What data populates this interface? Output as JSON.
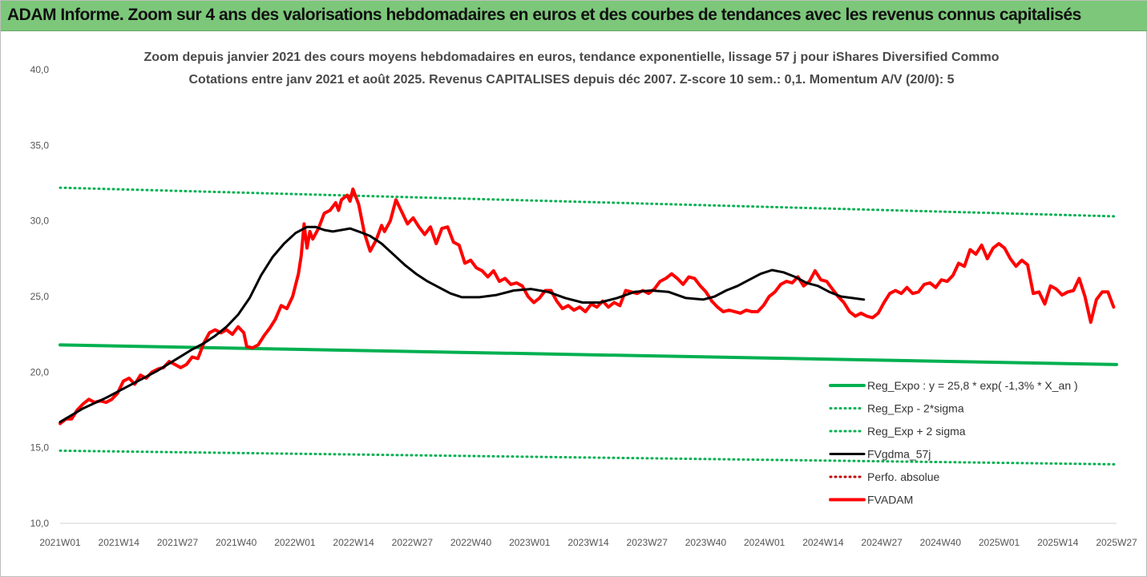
{
  "banner": {
    "title": "ADAM Informe. Zoom sur 4 ans des valorisations hebdomadaires en euros et des courbes de tendances avec les revenus connus capitalisés"
  },
  "colors": {
    "banner_bg": "#7cc77a",
    "green": "#00b050",
    "red": "#ff0000",
    "black": "#000000",
    "dark_red": "#c00000"
  },
  "chart_data": {
    "type": "line",
    "title": "Zoom depuis janvier 2021 des cours moyens hebdomadaires en euros, tendance exponentielle, lissage 57 j pour iShares Diversified Commo",
    "subtitle": "Cotations entre janv 2021 et août 2025. Revenus CAPITALISES depuis déc 2007. Z-score 10 sem.: 0,1. Momentum A/V (20/0): 5",
    "x_tick_labels": [
      "2021W01",
      "2021W14",
      "2021W27",
      "2021W40",
      "2022W01",
      "2022W14",
      "2022W27",
      "2022W40",
      "2023W01",
      "2023W14",
      "2023W27",
      "2023W40",
      "2024W01",
      "2024W14",
      "2024W27",
      "2024W40",
      "2025W01",
      "2025W14",
      "2025W27"
    ],
    "y_tick_labels": [
      "10,0",
      "15,0",
      "20,0",
      "25,0",
      "30,0",
      "35,0",
      "40,0"
    ],
    "ylim": [
      10,
      40
    ],
    "y_ticks": [
      10,
      15,
      20,
      25,
      30,
      35,
      40
    ],
    "x_range_weeks": [
      0,
      236
    ],
    "grid": false,
    "legend_position": "bottom-right",
    "series": [
      {
        "name": "Reg_Expo : y = 25,8 * exp( -1,3% *  X_an )",
        "style": "solid-thick",
        "color": "#00b050",
        "points": [
          [
            0,
            21.8
          ],
          [
            236,
            20.5
          ]
        ]
      },
      {
        "name": "Reg_Exp - 2*sigma",
        "style": "dotted",
        "color": "#00b050",
        "points": [
          [
            0,
            14.8
          ],
          [
            236,
            13.9
          ]
        ]
      },
      {
        "name": "Reg_Exp + 2 sigma",
        "style": "dotted",
        "color": "#00b050",
        "points": [
          [
            0,
            32.2
          ],
          [
            236,
            30.3
          ]
        ]
      },
      {
        "name": "FVgdma_57j",
        "style": "solid",
        "color": "#000000",
        "points": [
          [
            0,
            16.7
          ],
          [
            8,
            17.6
          ],
          [
            16,
            18.3
          ],
          [
            22,
            18.9
          ],
          [
            28,
            19.5
          ],
          [
            34,
            20.1
          ],
          [
            40,
            20.8
          ],
          [
            46,
            21.5
          ],
          [
            50,
            21.9
          ],
          [
            54,
            22.4
          ],
          [
            58,
            23.0
          ],
          [
            62,
            23.8
          ],
          [
            66,
            24.9
          ],
          [
            70,
            26.4
          ],
          [
            74,
            27.6
          ],
          [
            78,
            28.5
          ],
          [
            82,
            29.2
          ],
          [
            86,
            29.6
          ],
          [
            89,
            29.6
          ],
          [
            92,
            29.4
          ],
          [
            95,
            29.3
          ],
          [
            98,
            29.4
          ],
          [
            101,
            29.5
          ],
          [
            104,
            29.3
          ],
          [
            108,
            29.0
          ],
          [
            112,
            28.5
          ],
          [
            116,
            27.8
          ],
          [
            120,
            27.1
          ],
          [
            124,
            26.5
          ],
          [
            128,
            26.0
          ],
          [
            132,
            25.6
          ],
          [
            136,
            25.2
          ],
          [
            140,
            24.95
          ],
          [
            146,
            24.95
          ],
          [
            152,
            25.1
          ],
          [
            158,
            25.4
          ],
          [
            164,
            25.5
          ],
          [
            170,
            25.3
          ],
          [
            176,
            24.9
          ],
          [
            182,
            24.6
          ],
          [
            188,
            24.6
          ],
          [
            194,
            24.9
          ],
          [
            200,
            25.3
          ],
          [
            206,
            25.4
          ],
          [
            212,
            25.3
          ],
          [
            218,
            24.9
          ],
          [
            224,
            24.8
          ],
          [
            228,
            25.0
          ],
          [
            232,
            25.4
          ],
          [
            236,
            25.7
          ],
          [
            240,
            26.1
          ],
          [
            244,
            26.5
          ],
          [
            248,
            26.75
          ],
          [
            252,
            26.6
          ],
          [
            256,
            26.3
          ],
          [
            260,
            25.9
          ],
          [
            264,
            25.7
          ],
          [
            268,
            25.3
          ],
          [
            272,
            25.0
          ],
          [
            276,
            24.9
          ],
          [
            280,
            24.8
          ]
        ]
      },
      {
        "name": "Perfo. absolue",
        "style": "dotted",
        "color": "#c00000",
        "points": []
      },
      {
        "name": "FVADAM",
        "style": "solid-thick",
        "color": "#ff0000",
        "points": [
          [
            0,
            16.6
          ],
          [
            2,
            16.9
          ],
          [
            4,
            16.9
          ],
          [
            6,
            17.5
          ],
          [
            8,
            17.9
          ],
          [
            10,
            18.2
          ],
          [
            12,
            18.0
          ],
          [
            14,
            18.1
          ],
          [
            16,
            18.0
          ],
          [
            18,
            18.2
          ],
          [
            20,
            18.6
          ],
          [
            22,
            19.4
          ],
          [
            24,
            19.6
          ],
          [
            26,
            19.2
          ],
          [
            28,
            19.8
          ],
          [
            30,
            19.6
          ],
          [
            32,
            20.0
          ],
          [
            34,
            20.2
          ],
          [
            36,
            20.3
          ],
          [
            38,
            20.7
          ],
          [
            40,
            20.5
          ],
          [
            42,
            20.3
          ],
          [
            44,
            20.5
          ],
          [
            46,
            21.0
          ],
          [
            48,
            20.9
          ],
          [
            50,
            21.9
          ],
          [
            52,
            22.6
          ],
          [
            54,
            22.8
          ],
          [
            56,
            22.6
          ],
          [
            58,
            22.8
          ],
          [
            60,
            22.5
          ],
          [
            62,
            23.0
          ],
          [
            64,
            22.6
          ],
          [
            65,
            21.7
          ],
          [
            67,
            21.6
          ],
          [
            69,
            21.8
          ],
          [
            71,
            22.4
          ],
          [
            73,
            22.9
          ],
          [
            75,
            23.5
          ],
          [
            77,
            24.4
          ],
          [
            79,
            24.2
          ],
          [
            81,
            25.0
          ],
          [
            83,
            26.5
          ],
          [
            84,
            27.7
          ],
          [
            85,
            29.8
          ],
          [
            86,
            28.2
          ],
          [
            87,
            29.3
          ],
          [
            88,
            28.8
          ],
          [
            90,
            29.5
          ],
          [
            92,
            30.5
          ],
          [
            94,
            30.7
          ],
          [
            96,
            31.2
          ],
          [
            97,
            30.7
          ],
          [
            98,
            31.4
          ],
          [
            100,
            31.7
          ],
          [
            101,
            31.3
          ],
          [
            102,
            32.1
          ],
          [
            104,
            31.1
          ],
          [
            106,
            29.2
          ],
          [
            108,
            28.0
          ],
          [
            110,
            28.7
          ],
          [
            112,
            29.7
          ],
          [
            113,
            29.3
          ],
          [
            115,
            30.0
          ],
          [
            117,
            31.4
          ],
          [
            119,
            30.6
          ],
          [
            121,
            29.8
          ],
          [
            123,
            30.2
          ],
          [
            125,
            29.6
          ],
          [
            127,
            29.1
          ],
          [
            129,
            29.6
          ],
          [
            131,
            28.5
          ],
          [
            133,
            29.5
          ],
          [
            135,
            29.6
          ],
          [
            137,
            28.6
          ],
          [
            139,
            28.4
          ],
          [
            141,
            27.2
          ],
          [
            143,
            27.4
          ],
          [
            145,
            26.9
          ],
          [
            147,
            26.7
          ],
          [
            149,
            26.3
          ],
          [
            151,
            26.7
          ],
          [
            153,
            26.0
          ],
          [
            155,
            26.2
          ],
          [
            157,
            25.8
          ],
          [
            159,
            25.9
          ],
          [
            161,
            25.7
          ],
          [
            163,
            25.0
          ],
          [
            165,
            24.6
          ],
          [
            167,
            24.9
          ],
          [
            169,
            25.4
          ],
          [
            171,
            25.4
          ],
          [
            173,
            24.7
          ],
          [
            175,
            24.2
          ],
          [
            177,
            24.4
          ],
          [
            179,
            24.1
          ],
          [
            181,
            24.3
          ],
          [
            183,
            24.0
          ],
          [
            185,
            24.5
          ],
          [
            187,
            24.3
          ],
          [
            189,
            24.7
          ],
          [
            191,
            24.3
          ],
          [
            193,
            24.6
          ],
          [
            195,
            24.4
          ],
          [
            197,
            25.4
          ],
          [
            199,
            25.3
          ],
          [
            201,
            25.2
          ],
          [
            203,
            25.4
          ],
          [
            205,
            25.2
          ],
          [
            207,
            25.5
          ],
          [
            209,
            26.0
          ],
          [
            211,
            26.2
          ],
          [
            213,
            26.5
          ],
          [
            215,
            26.2
          ],
          [
            217,
            25.8
          ],
          [
            219,
            26.3
          ],
          [
            221,
            26.2
          ],
          [
            223,
            25.7
          ],
          [
            225,
            25.3
          ],
          [
            227,
            24.7
          ],
          [
            229,
            24.3
          ],
          [
            231,
            24.0
          ],
          [
            233,
            24.1
          ],
          [
            235,
            24.0
          ],
          [
            237,
            23.9
          ],
          [
            239,
            24.1
          ],
          [
            241,
            24.0
          ],
          [
            243,
            24.0
          ],
          [
            245,
            24.4
          ],
          [
            247,
            25.0
          ],
          [
            249,
            25.3
          ],
          [
            251,
            25.8
          ],
          [
            253,
            26.0
          ],
          [
            255,
            25.9
          ],
          [
            257,
            26.3
          ],
          [
            259,
            25.7
          ],
          [
            261,
            26.0
          ],
          [
            263,
            26.7
          ],
          [
            265,
            26.1
          ],
          [
            267,
            26.0
          ],
          [
            269,
            25.5
          ],
          [
            271,
            25.0
          ],
          [
            273,
            24.6
          ],
          [
            275,
            24.0
          ],
          [
            277,
            23.7
          ],
          [
            279,
            23.9
          ],
          [
            281,
            23.7
          ],
          [
            283,
            23.6
          ],
          [
            285,
            23.9
          ],
          [
            287,
            24.6
          ],
          [
            289,
            25.2
          ],
          [
            291,
            25.4
          ],
          [
            293,
            25.2
          ],
          [
            295,
            25.6
          ],
          [
            297,
            25.2
          ],
          [
            299,
            25.3
          ],
          [
            301,
            25.8
          ],
          [
            303,
            25.9
          ],
          [
            305,
            25.6
          ],
          [
            307,
            26.1
          ],
          [
            309,
            26.0
          ],
          [
            311,
            26.4
          ],
          [
            313,
            27.2
          ],
          [
            315,
            27.0
          ],
          [
            317,
            28.1
          ],
          [
            319,
            27.8
          ],
          [
            321,
            28.4
          ],
          [
            323,
            27.5
          ],
          [
            325,
            28.2
          ],
          [
            327,
            28.5
          ],
          [
            329,
            28.2
          ],
          [
            331,
            27.5
          ],
          [
            333,
            27.0
          ],
          [
            335,
            27.4
          ],
          [
            337,
            27.1
          ],
          [
            339,
            25.2
          ],
          [
            341,
            25.3
          ],
          [
            343,
            24.5
          ],
          [
            345,
            25.7
          ],
          [
            347,
            25.5
          ],
          [
            349,
            25.1
          ],
          [
            351,
            25.3
          ],
          [
            353,
            25.4
          ],
          [
            355,
            26.2
          ],
          [
            357,
            25.0
          ],
          [
            359,
            23.3
          ],
          [
            361,
            24.8
          ],
          [
            363,
            25.3
          ],
          [
            365,
            25.3
          ],
          [
            367,
            24.3
          ]
        ]
      }
    ]
  }
}
